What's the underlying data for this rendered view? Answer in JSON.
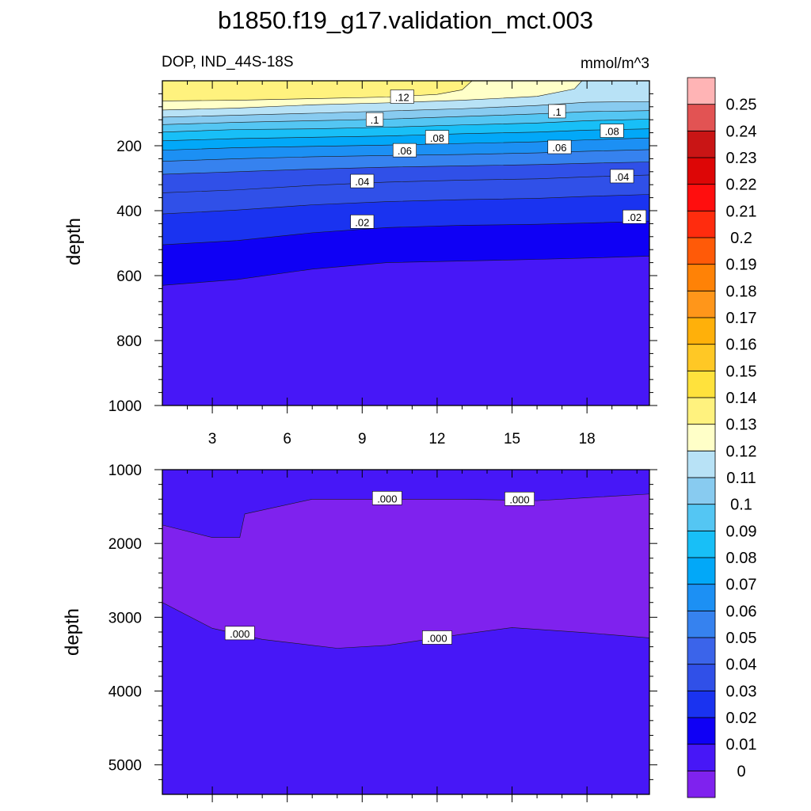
{
  "title": "b1850.f19_g17.validation_mct.003",
  "chart_data": [
    {
      "type": "contour",
      "panel": "upper",
      "left_subtitle": "DOP, IND_44S-18S",
      "right_subtitle": "mmol/m^3",
      "xlabel": "",
      "ylabel": "depth",
      "xlim": [
        1,
        20.5
      ],
      "ylim": [
        0,
        1000
      ],
      "y_reversed": true,
      "x_ticks": [
        "3",
        "6",
        "9",
        "12",
        "15",
        "18"
      ],
      "x_tick_values": [
        3,
        6,
        9,
        12,
        15,
        18
      ],
      "y_ticks": [
        "200",
        "400",
        "600",
        "800",
        "1000"
      ],
      "y_tick_values": [
        200,
        400,
        600,
        800,
        1000
      ],
      "depth_top": 0,
      "contour_lines": [
        {
          "level": 0.12,
          "x": [
            1,
            4,
            7,
            10,
            13,
            16,
            18,
            20.5
          ],
          "depth": [
            0,
            0,
            0,
            0,
            0,
            0,
            0,
            0
          ]
        },
        {
          "level": 0.12,
          "x": [
            1,
            4,
            7,
            10,
            12.5,
            13.2,
            13.2
          ],
          "depth": [
            0,
            0,
            0,
            0,
            0,
            0,
            0
          ]
        },
        {
          "level": 0.12,
          "x": [
            1,
            4,
            7,
            10,
            12,
            13,
            13.4
          ],
          "depth": [
            62,
            60,
            55,
            50,
            42,
            28,
            0
          ]
        },
        {
          "level": 0.11,
          "x": [
            1,
            4,
            7,
            10,
            13,
            16,
            17.5,
            17.8
          ],
          "depth": [
            90,
            84,
            74,
            68,
            60,
            48,
            25,
            0
          ]
        },
        {
          "level": 0.1,
          "x": [
            1,
            4,
            7,
            10,
            13,
            16,
            18,
            20.5
          ],
          "depth": [
            112,
            106,
            100,
            93,
            86,
            76,
            66,
            64
          ]
        },
        {
          "level": 0.09,
          "x": [
            1,
            4,
            7,
            10,
            13,
            16,
            18,
            20.5
          ],
          "depth": [
            135,
            128,
            123,
            118,
            110,
            102,
            95,
            92
          ]
        },
        {
          "level": 0.08,
          "x": [
            1,
            4,
            7,
            10,
            13,
            16,
            18,
            20.5
          ],
          "depth": [
            158,
            150,
            148,
            143,
            136,
            130,
            123,
            118
          ]
        },
        {
          "level": 0.07,
          "x": [
            1,
            4,
            7,
            10,
            13,
            16,
            18,
            20.5
          ],
          "depth": [
            185,
            178,
            174,
            170,
            163,
            158,
            152,
            148
          ]
        },
        {
          "level": 0.06,
          "x": [
            1,
            4,
            7,
            10,
            13,
            16,
            18,
            20.5
          ],
          "depth": [
            214,
            206,
            202,
            198,
            193,
            188,
            182,
            176
          ]
        },
        {
          "level": 0.05,
          "x": [
            1,
            4,
            7,
            10,
            13,
            16,
            18,
            20.5
          ],
          "depth": [
            248,
            240,
            234,
            230,
            227,
            222,
            217,
            212
          ]
        },
        {
          "level": 0.04,
          "x": [
            1,
            4,
            7,
            10,
            13,
            16,
            18,
            20.5
          ],
          "depth": [
            288,
            280,
            272,
            266,
            262,
            258,
            254,
            250
          ]
        },
        {
          "level": 0.03,
          "x": [
            1,
            4,
            7,
            10,
            13,
            16,
            18,
            20.5
          ],
          "depth": [
            345,
            336,
            322,
            312,
            306,
            302,
            296,
            290
          ]
        },
        {
          "level": 0.02,
          "x": [
            1,
            4,
            7,
            10,
            13,
            16,
            18,
            20.5
          ],
          "depth": [
            410,
            398,
            382,
            372,
            366,
            362,
            356,
            350
          ]
        },
        {
          "level": 0.01,
          "x": [
            1,
            4,
            7,
            10,
            13,
            16,
            18,
            20.5
          ],
          "depth": [
            505,
            492,
            468,
            452,
            445,
            442,
            438,
            432
          ]
        },
        {
          "level": 0.0,
          "x": [
            1,
            4,
            7,
            10,
            13,
            16,
            18,
            20.5
          ],
          "depth": [
            630,
            612,
            580,
            560,
            555,
            550,
            546,
            540
          ]
        }
      ],
      "contour_labels": [
        {
          "text": ".12",
          "x": 10.6,
          "depth": 50
        },
        {
          "text": ".1",
          "x": 9.5,
          "depth": 120
        },
        {
          "text": ".1",
          "x": 16.8,
          "depth": 95
        },
        {
          "text": ".08",
          "x": 12,
          "depth": 175
        },
        {
          "text": ".08",
          "x": 19,
          "depth": 155
        },
        {
          "text": ".06",
          "x": 10.7,
          "depth": 215
        },
        {
          "text": ".06",
          "x": 16.9,
          "depth": 205
        },
        {
          "text": ".04",
          "x": 9,
          "depth": 310
        },
        {
          "text": ".04",
          "x": 19.4,
          "depth": 295
        },
        {
          "text": ".02",
          "x": 9,
          "depth": 435
        },
        {
          "text": ".02",
          "x": 19.9,
          "depth": 420
        }
      ]
    },
    {
      "type": "contour",
      "panel": "lower",
      "xlabel": "",
      "ylabel": "depth",
      "xlim": [
        1,
        20.5
      ],
      "ylim": [
        1000,
        5400
      ],
      "y_reversed": true,
      "x_ticks": [
        "3",
        "6",
        "9",
        "12",
        "15",
        "18"
      ],
      "x_tick_values": [
        3,
        6,
        9,
        12,
        15,
        18
      ],
      "y_ticks": [
        "1000",
        "2000",
        "3000",
        "4000",
        "5000"
      ],
      "y_tick_values": [
        1000,
        2000,
        3000,
        4000,
        5000
      ],
      "depth_bottom": 5400,
      "negative_region": {
        "top_x": [
          1,
          3,
          4.1,
          4.3,
          7,
          10,
          13,
          16,
          18,
          20.5
        ],
        "top_depth": [
          1750,
          1920,
          1920,
          1600,
          1400,
          1400,
          1400,
          1420,
          1380,
          1330
        ],
        "bottom_x": [
          1,
          3,
          5,
          7,
          8,
          10,
          13,
          15,
          18,
          20.5
        ],
        "bottom_depth": [
          2800,
          3150,
          3300,
          3380,
          3420,
          3380,
          3230,
          3140,
          3210,
          3280
        ]
      },
      "contour_labels": [
        {
          "text": ".000",
          "x": 10,
          "depth": 1390
        },
        {
          "text": ".000",
          "x": 15.3,
          "depth": 1400
        },
        {
          "text": ".000",
          "x": 4.1,
          "depth": 3220
        },
        {
          "text": ".000",
          "x": 12,
          "depth": 3280
        }
      ]
    }
  ],
  "colorbar": {
    "levels": [
      "0",
      "0.01",
      "0.02",
      "0.03",
      "0.04",
      "0.05",
      "0.06",
      "0.07",
      "0.08",
      "0.09",
      "0.1",
      "0.11",
      "0.12",
      "0.13",
      "0.14",
      "0.15",
      "0.16",
      "0.17",
      "0.18",
      "0.19",
      "0.2",
      "0.21",
      "0.22",
      "0.23",
      "0.24",
      "0.25"
    ],
    "colors": [
      "#7f22ee",
      "#4717f7",
      "#0f00f5",
      "#1a33f0",
      "#3050e8",
      "#3b64ea",
      "#3682ef",
      "#1c90f4",
      "#02a8f8",
      "#18bff7",
      "#54c6f3",
      "#88cbf0",
      "#b8e2f6",
      "#ffffc8",
      "#fff27e",
      "#ffe23c",
      "#ffc825",
      "#ffb00a",
      "#ff961a",
      "#ff8206",
      "#ff5a08",
      "#ff2c0e",
      "#ff0e0e",
      "#dd0606",
      "#c91515",
      "#e25353",
      "#ffb4b5"
    ]
  }
}
